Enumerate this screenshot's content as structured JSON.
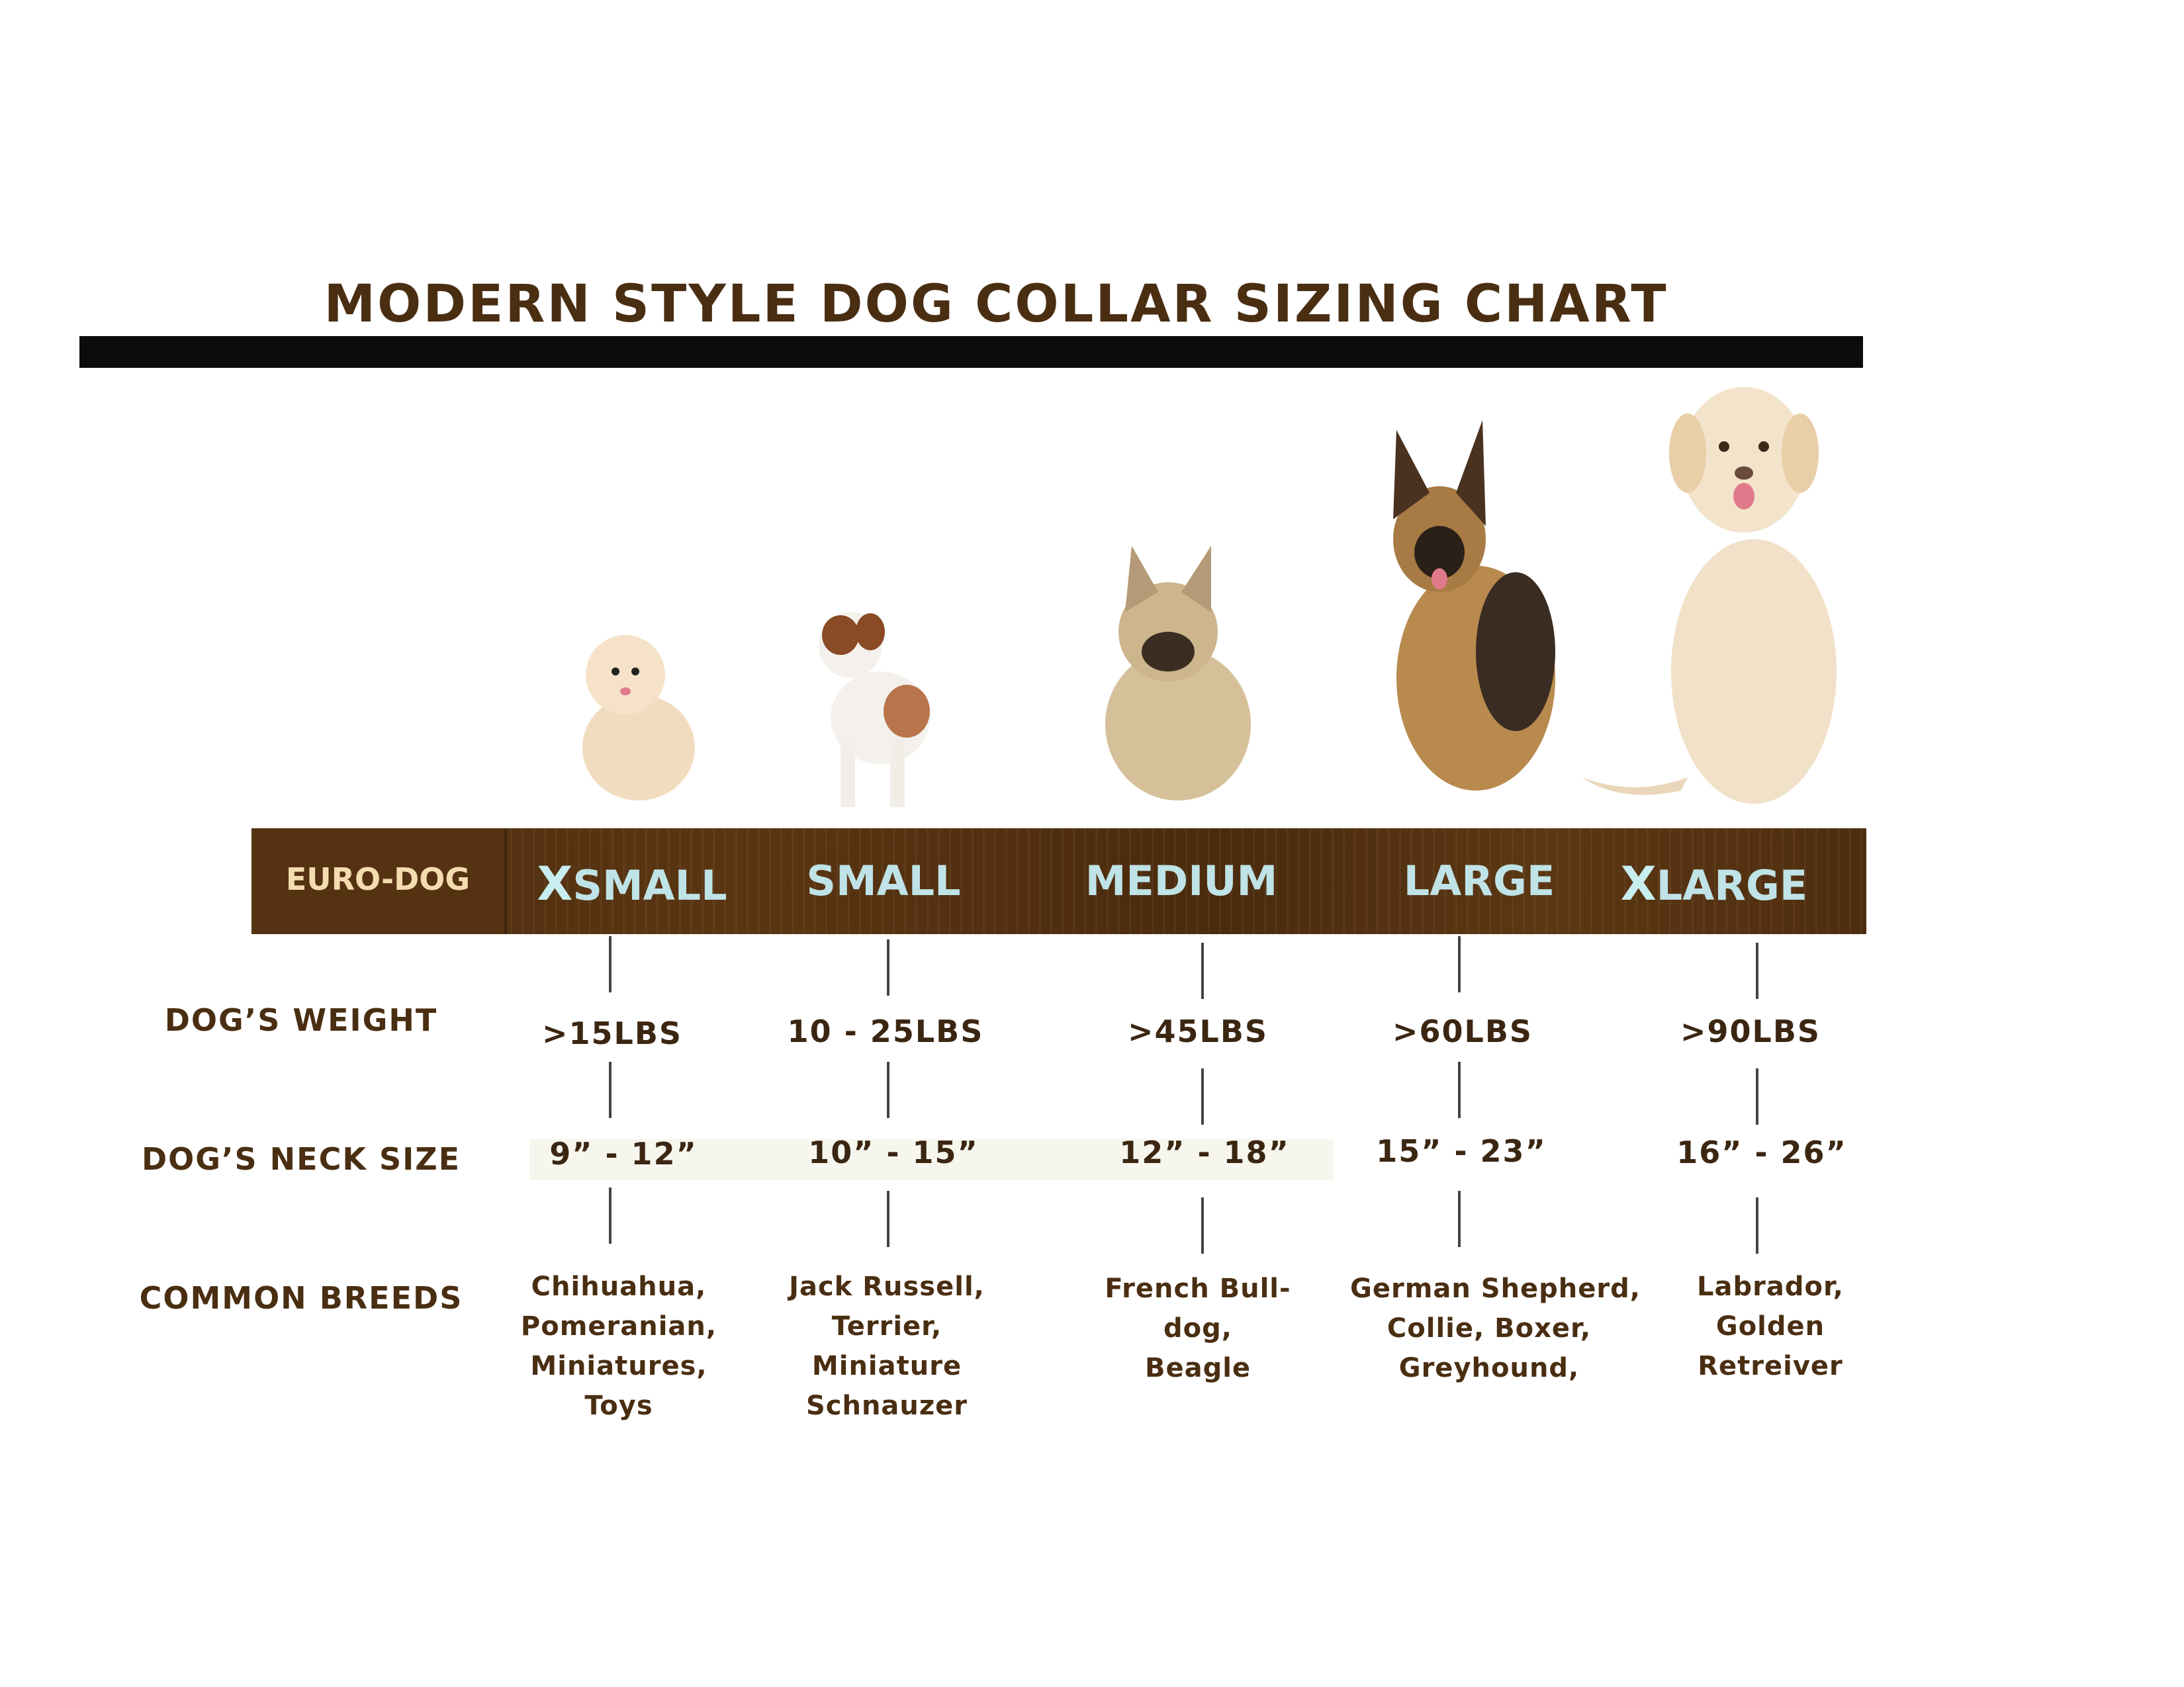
{
  "title": "MODERN STYLE DOG COLLAR SIZING CHART",
  "brand_label": "EURO-DOG",
  "colors": {
    "title": "#4a2e12",
    "band": "#52310f",
    "size_text": "#bfe3e6",
    "brand_text": "#f5dcb0"
  },
  "row_labels": {
    "weight": "DOG’S WEIGHT",
    "neck": "DOG’S NECK SIZE",
    "breeds": "COMMON BREEDS"
  },
  "sizes": [
    {
      "prefix": "X",
      "label": "SMALL",
      "weight": ">15LBS",
      "neck": "9” - 12”",
      "breeds": [
        "Chihuahua,",
        "Pomeranian,",
        "Miniatures,",
        "Toys"
      ],
      "dog": "pomeranian"
    },
    {
      "prefix": "",
      "label": "SMALL",
      "weight": "10 - 25LBS",
      "neck": "10” - 15”",
      "breeds": [
        "Jack Russell,",
        "Terrier,",
        "Miniature",
        "Schnauzer"
      ],
      "dog": "jack-russell-terrier"
    },
    {
      "prefix": "",
      "label": "MEDIUM",
      "weight": ">45LBS",
      "neck": "12” - 18”",
      "breeds": [
        "French Bull-",
        "dog,",
        "Beagle"
      ],
      "dog": "french-bulldog"
    },
    {
      "prefix": "",
      "label": "LARGE",
      "weight": ">60LBS",
      "neck": "15” - 23”",
      "breeds": [
        "German Shepherd,",
        "Collie, Boxer,",
        "Greyhound,"
      ],
      "dog": "german-shepherd"
    },
    {
      "prefix": "X",
      "label": "LARGE",
      "weight": ">90LBS",
      "neck": "16” - 26”",
      "breeds": [
        "Labrador,",
        "Golden",
        "Retreiver"
      ],
      "dog": "labrador"
    }
  ]
}
